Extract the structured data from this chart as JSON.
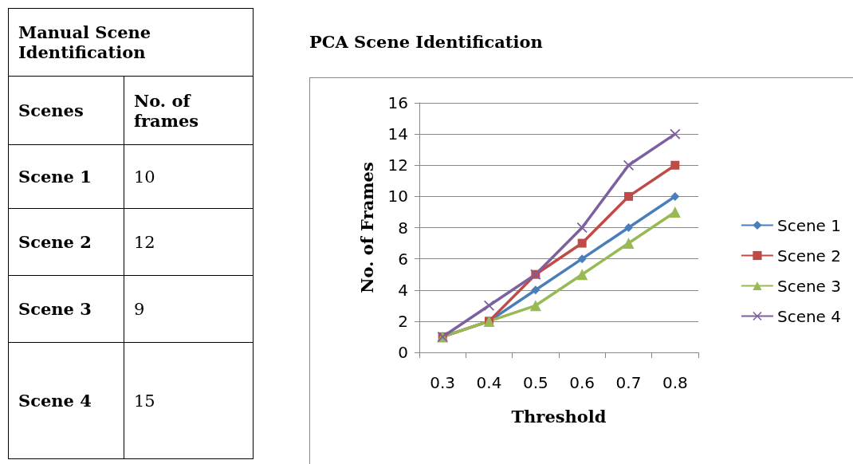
{
  "chart_data": [
    {
      "type": "other",
      "title": "Manual Scene Identification",
      "xlabel": "Scenes",
      "ylabel": "No. of frames",
      "categories": [
        "Scene 1",
        "Scene 2",
        "Scene 3",
        "Scene 4"
      ],
      "values": [
        10,
        12,
        9,
        15
      ],
      "data_labels": true
    },
    {
      "type": "line",
      "title": "PCA Scene Identification",
      "xlabel": "Threshold",
      "ylabel": "No. of Frames",
      "categories": [
        "0.3",
        "0.4",
        "0.5",
        "0.6",
        "0.7",
        "0.8"
      ],
      "ylim": [
        0,
        16
      ],
      "yticks": [
        0,
        2,
        4,
        6,
        8,
        10,
        12,
        14,
        16
      ],
      "grid": "y",
      "legend": "right",
      "line_style": "solid",
      "series": [
        {
          "name": "Scene 1",
          "color": "#4a7ebb",
          "marker": "diamond",
          "values": [
            1,
            2,
            4,
            6,
            8,
            10
          ]
        },
        {
          "name": "Scene 2",
          "color": "#be4b48",
          "marker": "square",
          "values": [
            1,
            2,
            5,
            7,
            10,
            12
          ]
        },
        {
          "name": "Scene 3",
          "color": "#98b954",
          "marker": "triangle",
          "values": [
            1,
            2,
            3,
            5,
            7,
            9
          ]
        },
        {
          "name": "Scene 4",
          "color": "#7d60a0",
          "marker": "cross",
          "values": [
            1,
            3,
            5,
            8,
            12,
            14
          ]
        }
      ]
    }
  ]
}
